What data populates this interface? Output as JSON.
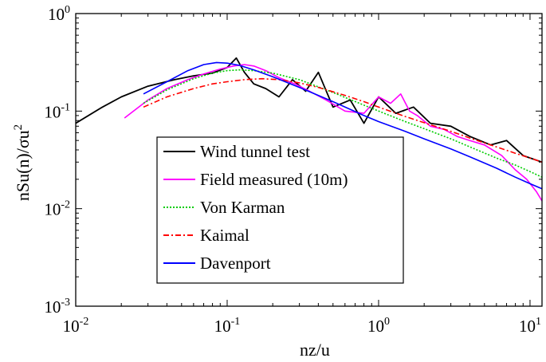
{
  "chart_data": {
    "type": "line",
    "xscale": "log",
    "yscale": "log",
    "xlabel": "nz/u",
    "ylabel_main": "nSu(n)/σu",
    "ylabel_sup": "2",
    "xlim": [
      0.01,
      12
    ],
    "ylim": [
      0.001,
      1
    ],
    "x_ticks": [
      {
        "value": 0.01,
        "base": "10",
        "exp": "-2"
      },
      {
        "value": 0.1,
        "base": "10",
        "exp": "-1"
      },
      {
        "value": 1,
        "base": "10",
        "exp": "0"
      },
      {
        "value": 10,
        "base": "10",
        "exp": "1"
      }
    ],
    "y_ticks": [
      {
        "value": 1,
        "base": "10",
        "exp": "0"
      },
      {
        "value": 0.1,
        "base": "10",
        "exp": "-1"
      },
      {
        "value": 0.01,
        "base": "10",
        "exp": "-2"
      },
      {
        "value": 0.001,
        "base": "10",
        "exp": "-3"
      }
    ],
    "legend_position": "center-left",
    "series": [
      {
        "name": "Wind tunnel test",
        "color": "#000000",
        "dash": "solid",
        "x": [
          0.01,
          0.015,
          0.02,
          0.03,
          0.045,
          0.06,
          0.08,
          0.1,
          0.115,
          0.13,
          0.15,
          0.18,
          0.22,
          0.27,
          0.33,
          0.4,
          0.5,
          0.65,
          0.8,
          1.0,
          1.3,
          1.7,
          2.2,
          3.0,
          4.0,
          5.5,
          7.0,
          9.0,
          12.0
        ],
        "y": [
          0.075,
          0.11,
          0.14,
          0.18,
          0.21,
          0.23,
          0.245,
          0.28,
          0.35,
          0.25,
          0.19,
          0.17,
          0.14,
          0.21,
          0.16,
          0.25,
          0.11,
          0.13,
          0.075,
          0.14,
          0.095,
          0.11,
          0.075,
          0.07,
          0.055,
          0.045,
          0.05,
          0.035,
          0.03
        ]
      },
      {
        "name": "Field measured (10m)",
        "color": "#ff00ff",
        "dash": "solid",
        "x": [
          0.021,
          0.03,
          0.04,
          0.055,
          0.07,
          0.09,
          0.11,
          0.13,
          0.15,
          0.18,
          0.22,
          0.28,
          0.35,
          0.45,
          0.6,
          0.8,
          1.0,
          1.2,
          1.4,
          1.6,
          1.8,
          2.2,
          2.7,
          3.3,
          4.0,
          5.0,
          6.5,
          8.0,
          9.5,
          11.0,
          12.0
        ],
        "y": [
          0.085,
          0.13,
          0.17,
          0.21,
          0.24,
          0.27,
          0.29,
          0.3,
          0.29,
          0.26,
          0.22,
          0.19,
          0.16,
          0.13,
          0.1,
          0.095,
          0.14,
          0.12,
          0.15,
          0.1,
          0.09,
          0.07,
          0.065,
          0.055,
          0.05,
          0.045,
          0.035,
          0.025,
          0.02,
          0.015,
          0.012
        ]
      },
      {
        "name": "Von Karman",
        "color": "#00cc00",
        "dash": "dotted",
        "x": [
          0.028,
          0.04,
          0.06,
          0.08,
          0.1,
          0.12,
          0.15,
          0.2,
          0.3,
          0.5,
          0.8,
          1.0,
          1.5,
          2.0,
          3.0,
          4.0,
          6.0,
          8.0,
          10.0,
          12.0
        ],
        "y": [
          0.12,
          0.165,
          0.215,
          0.245,
          0.26,
          0.265,
          0.26,
          0.245,
          0.21,
          0.155,
          0.115,
          0.1,
          0.078,
          0.066,
          0.052,
          0.043,
          0.033,
          0.028,
          0.024,
          0.021
        ]
      },
      {
        "name": "Kaimal",
        "color": "#ff0000",
        "dash": "dashdot",
        "x": [
          0.028,
          0.04,
          0.06,
          0.08,
          0.1,
          0.13,
          0.17,
          0.22,
          0.3,
          0.4,
          0.6,
          0.8,
          1.0,
          1.5,
          2.0,
          3.0,
          4.0,
          6.0,
          8.0,
          10.0,
          12.0
        ],
        "y": [
          0.11,
          0.14,
          0.17,
          0.19,
          0.2,
          0.21,
          0.215,
          0.21,
          0.195,
          0.175,
          0.145,
          0.125,
          0.11,
          0.088,
          0.076,
          0.062,
          0.053,
          0.043,
          0.037,
          0.033,
          0.03
        ]
      },
      {
        "name": "Davenport",
        "color": "#0000ff",
        "dash": "solid",
        "x": [
          0.028,
          0.04,
          0.055,
          0.07,
          0.085,
          0.1,
          0.12,
          0.15,
          0.2,
          0.3,
          0.5,
          0.8,
          1.0,
          1.5,
          2.0,
          3.0,
          4.0,
          6.0,
          8.0,
          10.0,
          12.0
        ],
        "y": [
          0.15,
          0.2,
          0.26,
          0.3,
          0.315,
          0.31,
          0.295,
          0.265,
          0.225,
          0.175,
          0.125,
          0.09,
          0.078,
          0.062,
          0.052,
          0.041,
          0.034,
          0.026,
          0.021,
          0.018,
          0.016
        ]
      }
    ]
  }
}
